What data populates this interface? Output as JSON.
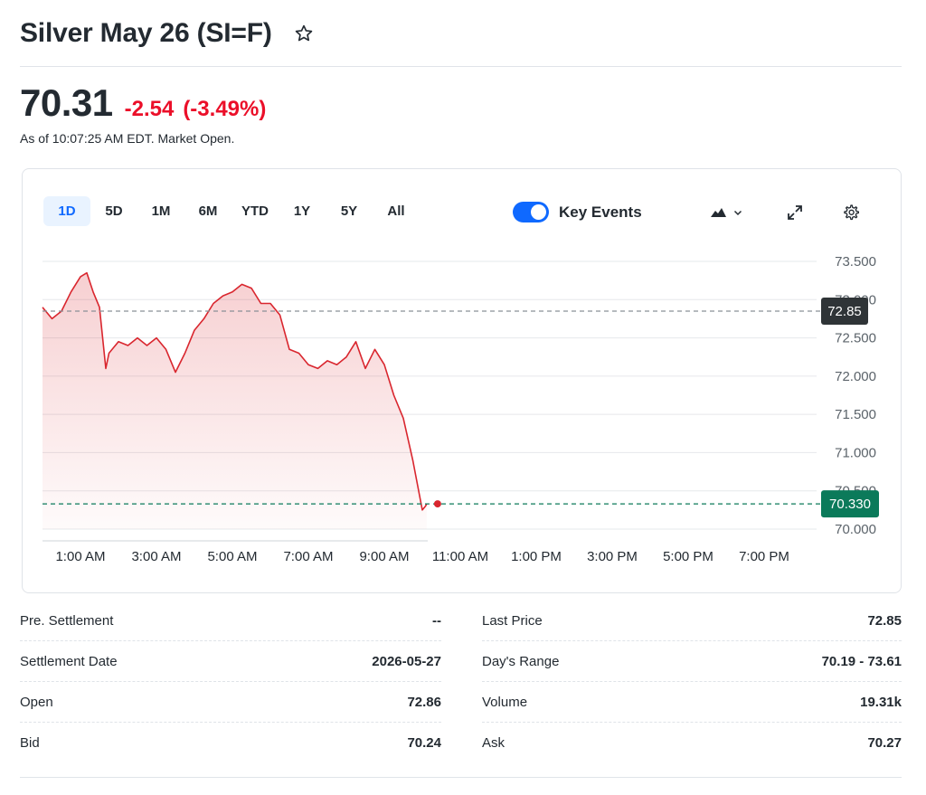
{
  "header": {
    "title": "Silver May 26 (SI=F)",
    "star_icon": "star-outline-icon"
  },
  "quote": {
    "price": "70.31",
    "change": "-2.54",
    "change_pct": "(-3.49%)",
    "as_of": "As of 10:07:25 AM EDT. Market Open.",
    "colors": {
      "down": "#eb0f29",
      "text": "#232a31"
    }
  },
  "chart": {
    "tabs": [
      "1D",
      "5D",
      "1M",
      "6M",
      "YTD",
      "1Y",
      "5Y",
      "All"
    ],
    "active_tab": "1D",
    "key_events_label": "Key Events",
    "key_events_on": true,
    "tool_icons": [
      "mountain-chart-type-icon",
      "chevron-down-icon",
      "expand-icon",
      "gear-icon"
    ],
    "prev_close_badge": "72.85",
    "current_badge": "70.330",
    "colors": {
      "line": "#d9262e",
      "accent": "#0f69ff",
      "current_badge": "#0b7a5a",
      "prev_badge": "#2f3437"
    }
  },
  "chart_data": {
    "type": "area",
    "x_ticks": [
      "1:00 AM",
      "3:00 AM",
      "5:00 AM",
      "7:00 AM",
      "9:00 AM",
      "11:00 AM",
      "1:00 PM",
      "3:00 PM",
      "5:00 PM",
      "7:00 PM"
    ],
    "y_ticks": [
      "73.500",
      "73.000",
      "72.500",
      "72.000",
      "71.500",
      "71.000",
      "70.500",
      "70.000"
    ],
    "ylim": [
      70.0,
      73.5
    ],
    "reference_lines": [
      {
        "label": "72.85",
        "value": 72.85,
        "style": "dashed",
        "color": "#8a9197"
      },
      {
        "label": "70.330",
        "value": 70.33,
        "style": "dashed",
        "color": "#0b7a5a"
      }
    ],
    "series": [
      {
        "x": [
          "0:00",
          "0:15",
          "0:30",
          "0:45",
          "1:00",
          "1:10",
          "1:20",
          "1:30",
          "1:40",
          "1:45",
          "2:00",
          "2:15",
          "2:30",
          "2:45",
          "3:00",
          "3:15",
          "3:30",
          "3:45",
          "4:00",
          "4:15",
          "4:30",
          "4:45",
          "5:00",
          "5:15",
          "5:30",
          "5:45",
          "6:00",
          "6:15",
          "6:30",
          "6:45",
          "7:00",
          "7:15",
          "7:30",
          "7:45",
          "8:00",
          "8:15",
          "8:30",
          "8:45",
          "9:00",
          "9:15",
          "9:30",
          "9:45",
          "10:00",
          "10:05",
          "10:07"
        ],
        "y": [
          72.9,
          72.75,
          72.85,
          73.1,
          73.3,
          73.35,
          73.1,
          72.9,
          72.1,
          72.3,
          72.45,
          72.4,
          72.5,
          72.4,
          72.5,
          72.35,
          72.05,
          72.3,
          72.6,
          72.75,
          72.95,
          73.05,
          73.1,
          73.2,
          73.15,
          72.95,
          72.95,
          72.8,
          72.35,
          72.3,
          72.15,
          72.1,
          72.2,
          72.15,
          72.25,
          72.45,
          72.1,
          72.35,
          72.15,
          71.75,
          71.45,
          70.9,
          70.25,
          70.3,
          70.33
        ]
      }
    ]
  },
  "stats": {
    "left": [
      {
        "label": "Pre. Settlement",
        "value": "--"
      },
      {
        "label": "Settlement Date",
        "value": "2026-05-27"
      },
      {
        "label": "Open",
        "value": "72.86"
      },
      {
        "label": "Bid",
        "value": "70.24"
      }
    ],
    "right": [
      {
        "label": "Last Price",
        "value": "72.85"
      },
      {
        "label": "Day's Range",
        "value": "70.19 - 73.61"
      },
      {
        "label": "Volume",
        "value": "19.31k"
      },
      {
        "label": "Ask",
        "value": "70.27"
      }
    ]
  }
}
